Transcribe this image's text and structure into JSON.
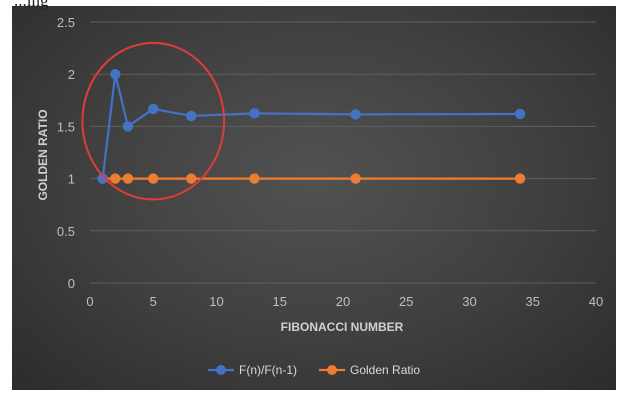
{
  "page": {
    "caption_fragment": "...ing"
  },
  "chart_data": {
    "type": "line",
    "title": "",
    "xlabel": "FIBONACCI NUMBER",
    "ylabel": "GOLDEN RATIO",
    "xlim": [
      0,
      40
    ],
    "ylim": [
      0,
      2.5
    ],
    "xticks": [
      0,
      5,
      10,
      15,
      20,
      25,
      30,
      35,
      40
    ],
    "yticks": [
      0,
      0.5,
      1,
      1.5,
      2,
      2.5
    ],
    "xtick_labels": [
      "0",
      "5",
      "10",
      "15",
      "20",
      "25",
      "30",
      "35",
      "40"
    ],
    "ytick_labels": [
      "0",
      "0.5",
      "1",
      "1.5",
      "2",
      "2.5"
    ],
    "grid": true,
    "legend_position": "bottom",
    "series": [
      {
        "name": "F(n)/F(n-1)",
        "color": "#4472c4",
        "x": [
          1,
          2,
          3,
          5,
          8,
          13,
          21,
          34
        ],
        "y": [
          1,
          2,
          1.5,
          1.667,
          1.6,
          1.625,
          1.615,
          1.619
        ]
      },
      {
        "name": "Golden Ratio",
        "color": "#ed7d31",
        "x": [
          1,
          2,
          3,
          5,
          8,
          13,
          21,
          34
        ],
        "y": [
          1,
          1,
          1,
          1,
          1,
          1,
          1,
          1
        ]
      }
    ],
    "annotation": {
      "shape": "ellipse",
      "color": "#e03c3c",
      "center": [
        5,
        1.55
      ],
      "radius_x": 5.6,
      "radius_y": 0.75
    }
  }
}
